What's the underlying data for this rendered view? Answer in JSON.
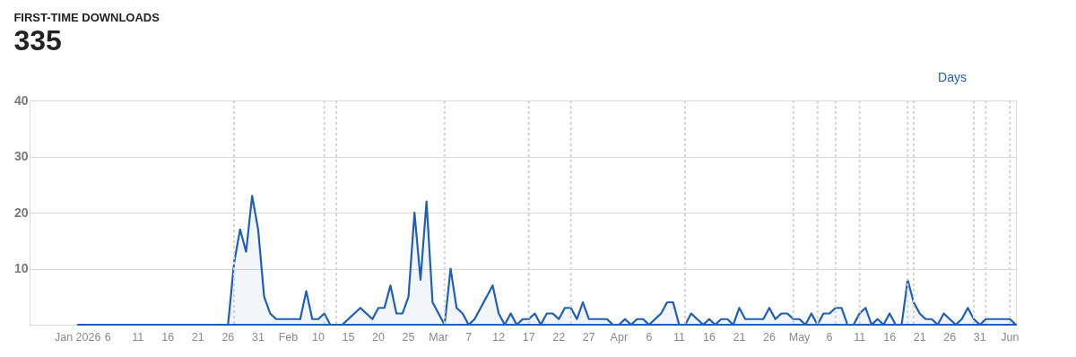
{
  "chart_data": {
    "type": "area",
    "title": "FIRST-TIME DOWNLOADS",
    "subtitle": "335",
    "annotations": [
      "Days"
    ],
    "x": [
      "2026-01-01",
      "2026-01-02",
      "2026-01-03",
      "2026-01-04",
      "2026-01-05",
      "2026-01-06",
      "2026-01-07",
      "2026-01-08",
      "2026-01-09",
      "2026-01-10",
      "2026-01-11",
      "2026-01-12",
      "2026-01-13",
      "2026-01-14",
      "2026-01-15",
      "2026-01-16",
      "2026-01-17",
      "2026-01-18",
      "2026-01-19",
      "2026-01-20",
      "2026-01-21",
      "2026-01-22",
      "2026-01-23",
      "2026-01-24",
      "2026-01-25",
      "2026-01-26",
      "2026-01-27",
      "2026-01-28",
      "2026-01-29",
      "2026-01-30",
      "2026-01-31",
      "2026-02-01",
      "2026-02-02",
      "2026-02-03",
      "2026-02-04",
      "2026-02-05",
      "2026-02-06",
      "2026-02-07",
      "2026-02-08",
      "2026-02-09",
      "2026-02-10",
      "2026-02-11",
      "2026-02-12",
      "2026-02-13",
      "2026-02-14",
      "2026-02-15",
      "2026-02-16",
      "2026-02-17",
      "2026-02-18",
      "2026-02-19",
      "2026-02-20",
      "2026-02-21",
      "2026-02-22",
      "2026-02-23",
      "2026-02-24",
      "2026-02-25",
      "2026-02-26",
      "2026-02-27",
      "2026-02-28",
      "2026-03-01",
      "2026-03-02",
      "2026-03-03",
      "2026-03-04",
      "2026-03-05",
      "2026-03-06",
      "2026-03-07",
      "2026-03-08",
      "2026-03-09",
      "2026-03-10",
      "2026-03-11",
      "2026-03-12",
      "2026-03-13",
      "2026-03-14",
      "2026-03-15",
      "2026-03-16",
      "2026-03-17",
      "2026-03-18",
      "2026-03-19",
      "2026-03-20",
      "2026-03-21",
      "2026-03-22",
      "2026-03-23",
      "2026-03-24",
      "2026-03-25",
      "2026-03-26",
      "2026-03-27",
      "2026-03-28",
      "2026-03-29",
      "2026-03-30",
      "2026-03-31",
      "2026-04-01",
      "2026-04-02",
      "2026-04-03",
      "2026-04-04",
      "2026-04-05",
      "2026-04-06",
      "2026-04-07",
      "2026-04-08",
      "2026-04-09",
      "2026-04-10",
      "2026-04-11",
      "2026-04-12",
      "2026-04-13",
      "2026-04-14",
      "2026-04-15",
      "2026-04-16",
      "2026-04-17",
      "2026-04-18",
      "2026-04-19",
      "2026-04-20",
      "2026-04-21",
      "2026-04-22",
      "2026-04-23",
      "2026-04-24",
      "2026-04-25",
      "2026-04-26",
      "2026-04-27",
      "2026-04-28",
      "2026-04-29",
      "2026-04-30",
      "2026-05-01",
      "2026-05-02",
      "2026-05-03",
      "2026-05-04",
      "2026-05-05",
      "2026-05-06",
      "2026-05-07",
      "2026-05-08",
      "2026-05-09",
      "2026-05-10",
      "2026-05-11",
      "2026-05-12",
      "2026-05-13",
      "2026-05-14",
      "2026-05-15",
      "2026-05-16",
      "2026-05-17",
      "2026-05-18",
      "2026-05-19",
      "2026-05-20",
      "2026-05-21",
      "2026-05-22",
      "2026-05-23",
      "2026-05-24",
      "2026-05-25",
      "2026-05-26",
      "2026-05-27",
      "2026-05-28",
      "2026-05-29",
      "2026-05-30",
      "2026-05-31",
      "2026-06-01",
      "2026-06-02",
      "2026-06-03",
      "2026-06-04",
      "2026-06-05",
      "2026-06-06"
    ],
    "series": [
      {
        "color": "#1f5fb8",
        "values": [
          0,
          0,
          0,
          0,
          0,
          0,
          0,
          0,
          0,
          0,
          0,
          0,
          0,
          0,
          0,
          0,
          0,
          0,
          0,
          0,
          0,
          0,
          0,
          0,
          0,
          0,
          11,
          17,
          13,
          23,
          17,
          5,
          2,
          1,
          1,
          1,
          1,
          1,
          6,
          1,
          1,
          2,
          0,
          0,
          0,
          1,
          2,
          3,
          2,
          1,
          3,
          3,
          7,
          2,
          2,
          5,
          20,
          8,
          22,
          4,
          2,
          0,
          10,
          3,
          2,
          0,
          1,
          3,
          5,
          7,
          2,
          0,
          2,
          0,
          1,
          1,
          2,
          0,
          2,
          2,
          1,
          3,
          3,
          1,
          4,
          1,
          1,
          1,
          1,
          0,
          0,
          1,
          0,
          1,
          1,
          0,
          1,
          2,
          4,
          4,
          0,
          0,
          2,
          1,
          0,
          1,
          0,
          1,
          1,
          0,
          3,
          1,
          1,
          1,
          1,
          3,
          1,
          2,
          2,
          1,
          1,
          0,
          2,
          0,
          2,
          2,
          3,
          3,
          0,
          0,
          2,
          3,
          0,
          1,
          0,
          2,
          0,
          0,
          8,
          4,
          2,
          1,
          1,
          0,
          2,
          1,
          0,
          1,
          3,
          1,
          0,
          1,
          1,
          1,
          1,
          1,
          0
        ]
      }
    ],
    "xlim": [
      "2025-12-24",
      "2026-06-06"
    ],
    "xticks": [
      {
        "value": "2026-01-01",
        "label": "Jan 2026"
      },
      {
        "value": "2026-01-06",
        "label": "6"
      },
      {
        "value": "2026-01-11",
        "label": "11"
      },
      {
        "value": "2026-01-16",
        "label": "16"
      },
      {
        "value": "2026-01-21",
        "label": "21"
      },
      {
        "value": "2026-01-26",
        "label": "26"
      },
      {
        "value": "2026-01-31",
        "label": "31"
      },
      {
        "value": "2026-02-05",
        "label": "Feb"
      },
      {
        "value": "2026-02-10",
        "label": "10"
      },
      {
        "value": "2026-02-15",
        "label": "15"
      },
      {
        "value": "2026-02-20",
        "label": "20"
      },
      {
        "value": "2026-02-25",
        "label": "25"
      },
      {
        "value": "2026-03-02",
        "label": "Mar"
      },
      {
        "value": "2026-03-07",
        "label": "7"
      },
      {
        "value": "2026-03-12",
        "label": "12"
      },
      {
        "value": "2026-03-17",
        "label": "17"
      },
      {
        "value": "2026-03-22",
        "label": "22"
      },
      {
        "value": "2026-03-27",
        "label": "27"
      },
      {
        "value": "2026-04-01",
        "label": "Apr"
      },
      {
        "value": "2026-04-06",
        "label": "6"
      },
      {
        "value": "2026-04-11",
        "label": "11"
      },
      {
        "value": "2026-04-16",
        "label": "16"
      },
      {
        "value": "2026-04-21",
        "label": "21"
      },
      {
        "value": "2026-04-26",
        "label": "26"
      },
      {
        "value": "2026-05-01",
        "label": "May"
      },
      {
        "value": "2026-05-06",
        "label": "6"
      },
      {
        "value": "2026-05-11",
        "label": "11"
      },
      {
        "value": "2026-05-16",
        "label": "16"
      },
      {
        "value": "2026-05-21",
        "label": "21"
      },
      {
        "value": "2026-05-26",
        "label": "26"
      },
      {
        "value": "2026-05-31",
        "label": "31"
      },
      {
        "value": "2026-06-05",
        "label": "Jun"
      }
    ],
    "ylim": [
      0,
      40
    ],
    "yticks": [
      {
        "value": 0,
        "label": null
      },
      10,
      20,
      30,
      40
    ],
    "grid": "y",
    "legend": false,
    "marker": "none",
    "line_style": "solid",
    "ref_lines": [
      {
        "axis": "x",
        "value": "2026-01-27",
        "color": "#d4d4d4",
        "line_style": "dotted"
      },
      {
        "axis": "x",
        "value": "2026-02-11",
        "color": "#d4d4d4",
        "line_style": "dotted"
      },
      {
        "axis": "x",
        "value": "2026-02-13",
        "color": "#d4d4d4",
        "line_style": "dotted"
      },
      {
        "axis": "x",
        "value": "2026-03-03",
        "color": "#d4d4d4",
        "line_style": "dotted"
      },
      {
        "axis": "x",
        "value": "2026-03-17",
        "color": "#d4d4d4",
        "line_style": "dotted"
      },
      {
        "axis": "x",
        "value": "2026-03-24",
        "color": "#d4d4d4",
        "line_style": "dotted"
      },
      {
        "axis": "x",
        "value": "2026-04-12",
        "color": "#d4d4d4",
        "line_style": "dotted"
      },
      {
        "axis": "x",
        "value": "2026-04-30",
        "color": "#d4d4d4",
        "line_style": "dotted"
      },
      {
        "axis": "x",
        "value": "2026-05-04",
        "color": "#d4d4d4",
        "line_style": "dotted"
      },
      {
        "axis": "x",
        "value": "2026-05-07",
        "color": "#d4d4d4",
        "line_style": "dotted"
      },
      {
        "axis": "x",
        "value": "2026-05-11",
        "color": "#d4d4d4",
        "line_style": "dotted"
      },
      {
        "axis": "x",
        "value": "2026-05-19",
        "color": "#d4d4d4",
        "line_style": "dotted"
      },
      {
        "axis": "x",
        "value": "2026-05-20",
        "color": "#d4d4d4",
        "line_style": "dotted"
      },
      {
        "axis": "x",
        "value": "2026-05-30",
        "color": "#d4d4d4",
        "line_style": "dotted"
      },
      {
        "axis": "x",
        "value": "2026-06-01",
        "color": "#d4d4d4",
        "line_style": "dotted"
      },
      {
        "axis": "x",
        "value": "2026-06-05",
        "color": "#d4d4d4",
        "line_style": "dotted"
      }
    ]
  }
}
